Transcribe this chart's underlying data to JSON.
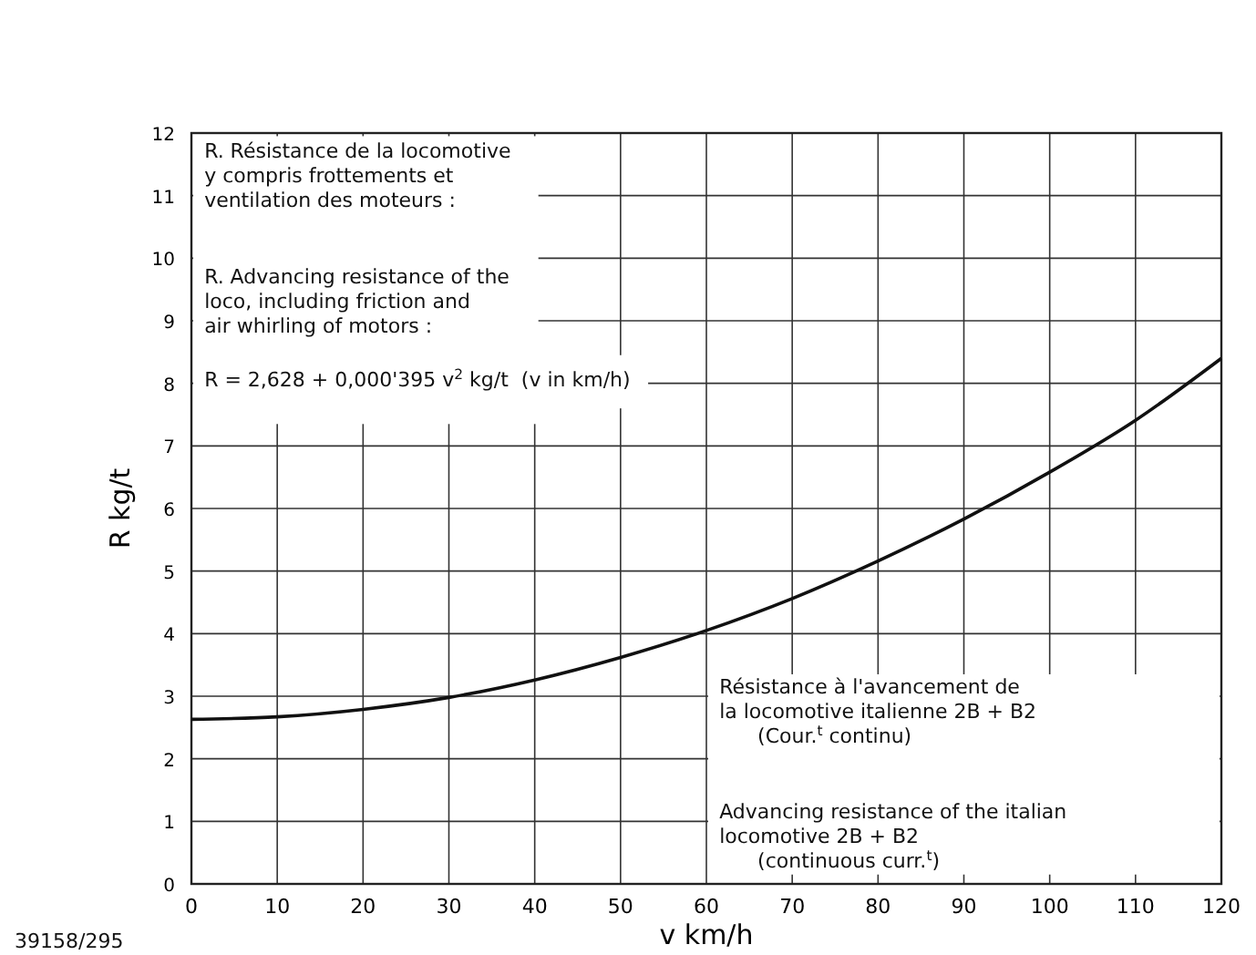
{
  "chart_data": {
    "type": "line",
    "xlabel": "v km/h",
    "ylabel": "R kg/t",
    "x": [
      0,
      10,
      20,
      30,
      40,
      50,
      60,
      70,
      80,
      90,
      100,
      110,
      120
    ],
    "series": [
      {
        "color": "#111111",
        "values": [
          2.63,
          2.67,
          2.79,
          2.98,
          3.26,
          3.62,
          4.05,
          4.56,
          5.16,
          5.83,
          6.58,
          7.41,
          8.4
        ]
      }
    ],
    "xlim": [
      0,
      120
    ],
    "ylim": [
      0,
      12
    ],
    "xticks": [
      0,
      10,
      20,
      30,
      40,
      50,
      60,
      70,
      80,
      90,
      100,
      110,
      120
    ],
    "yticks": [
      0,
      1,
      2,
      3,
      4,
      5,
      6,
      7,
      8,
      9,
      10,
      11,
      12
    ],
    "grid": true,
    "marker": "none",
    "line_style": "solid",
    "annotations": [
      "R. Résistance de la locomotive\ny compris frottements et\nventilation des moteurs :",
      "R. Advancing resistance of the\nloco, including friction and\nair whirling of motors :",
      "R = 2,628 + 0,000'395 v$^{2}$ kg/t  (v in km/h)",
      "Résistance à l'avancement de\nla locomotive italienne 2B + B2\n      (Cour.$^{t}$ continu)",
      "Advancing resistance of the italian\nlocomotive 2B + B2\n      (continuous curr.$^{t}$)",
      "39158/295"
    ]
  }
}
